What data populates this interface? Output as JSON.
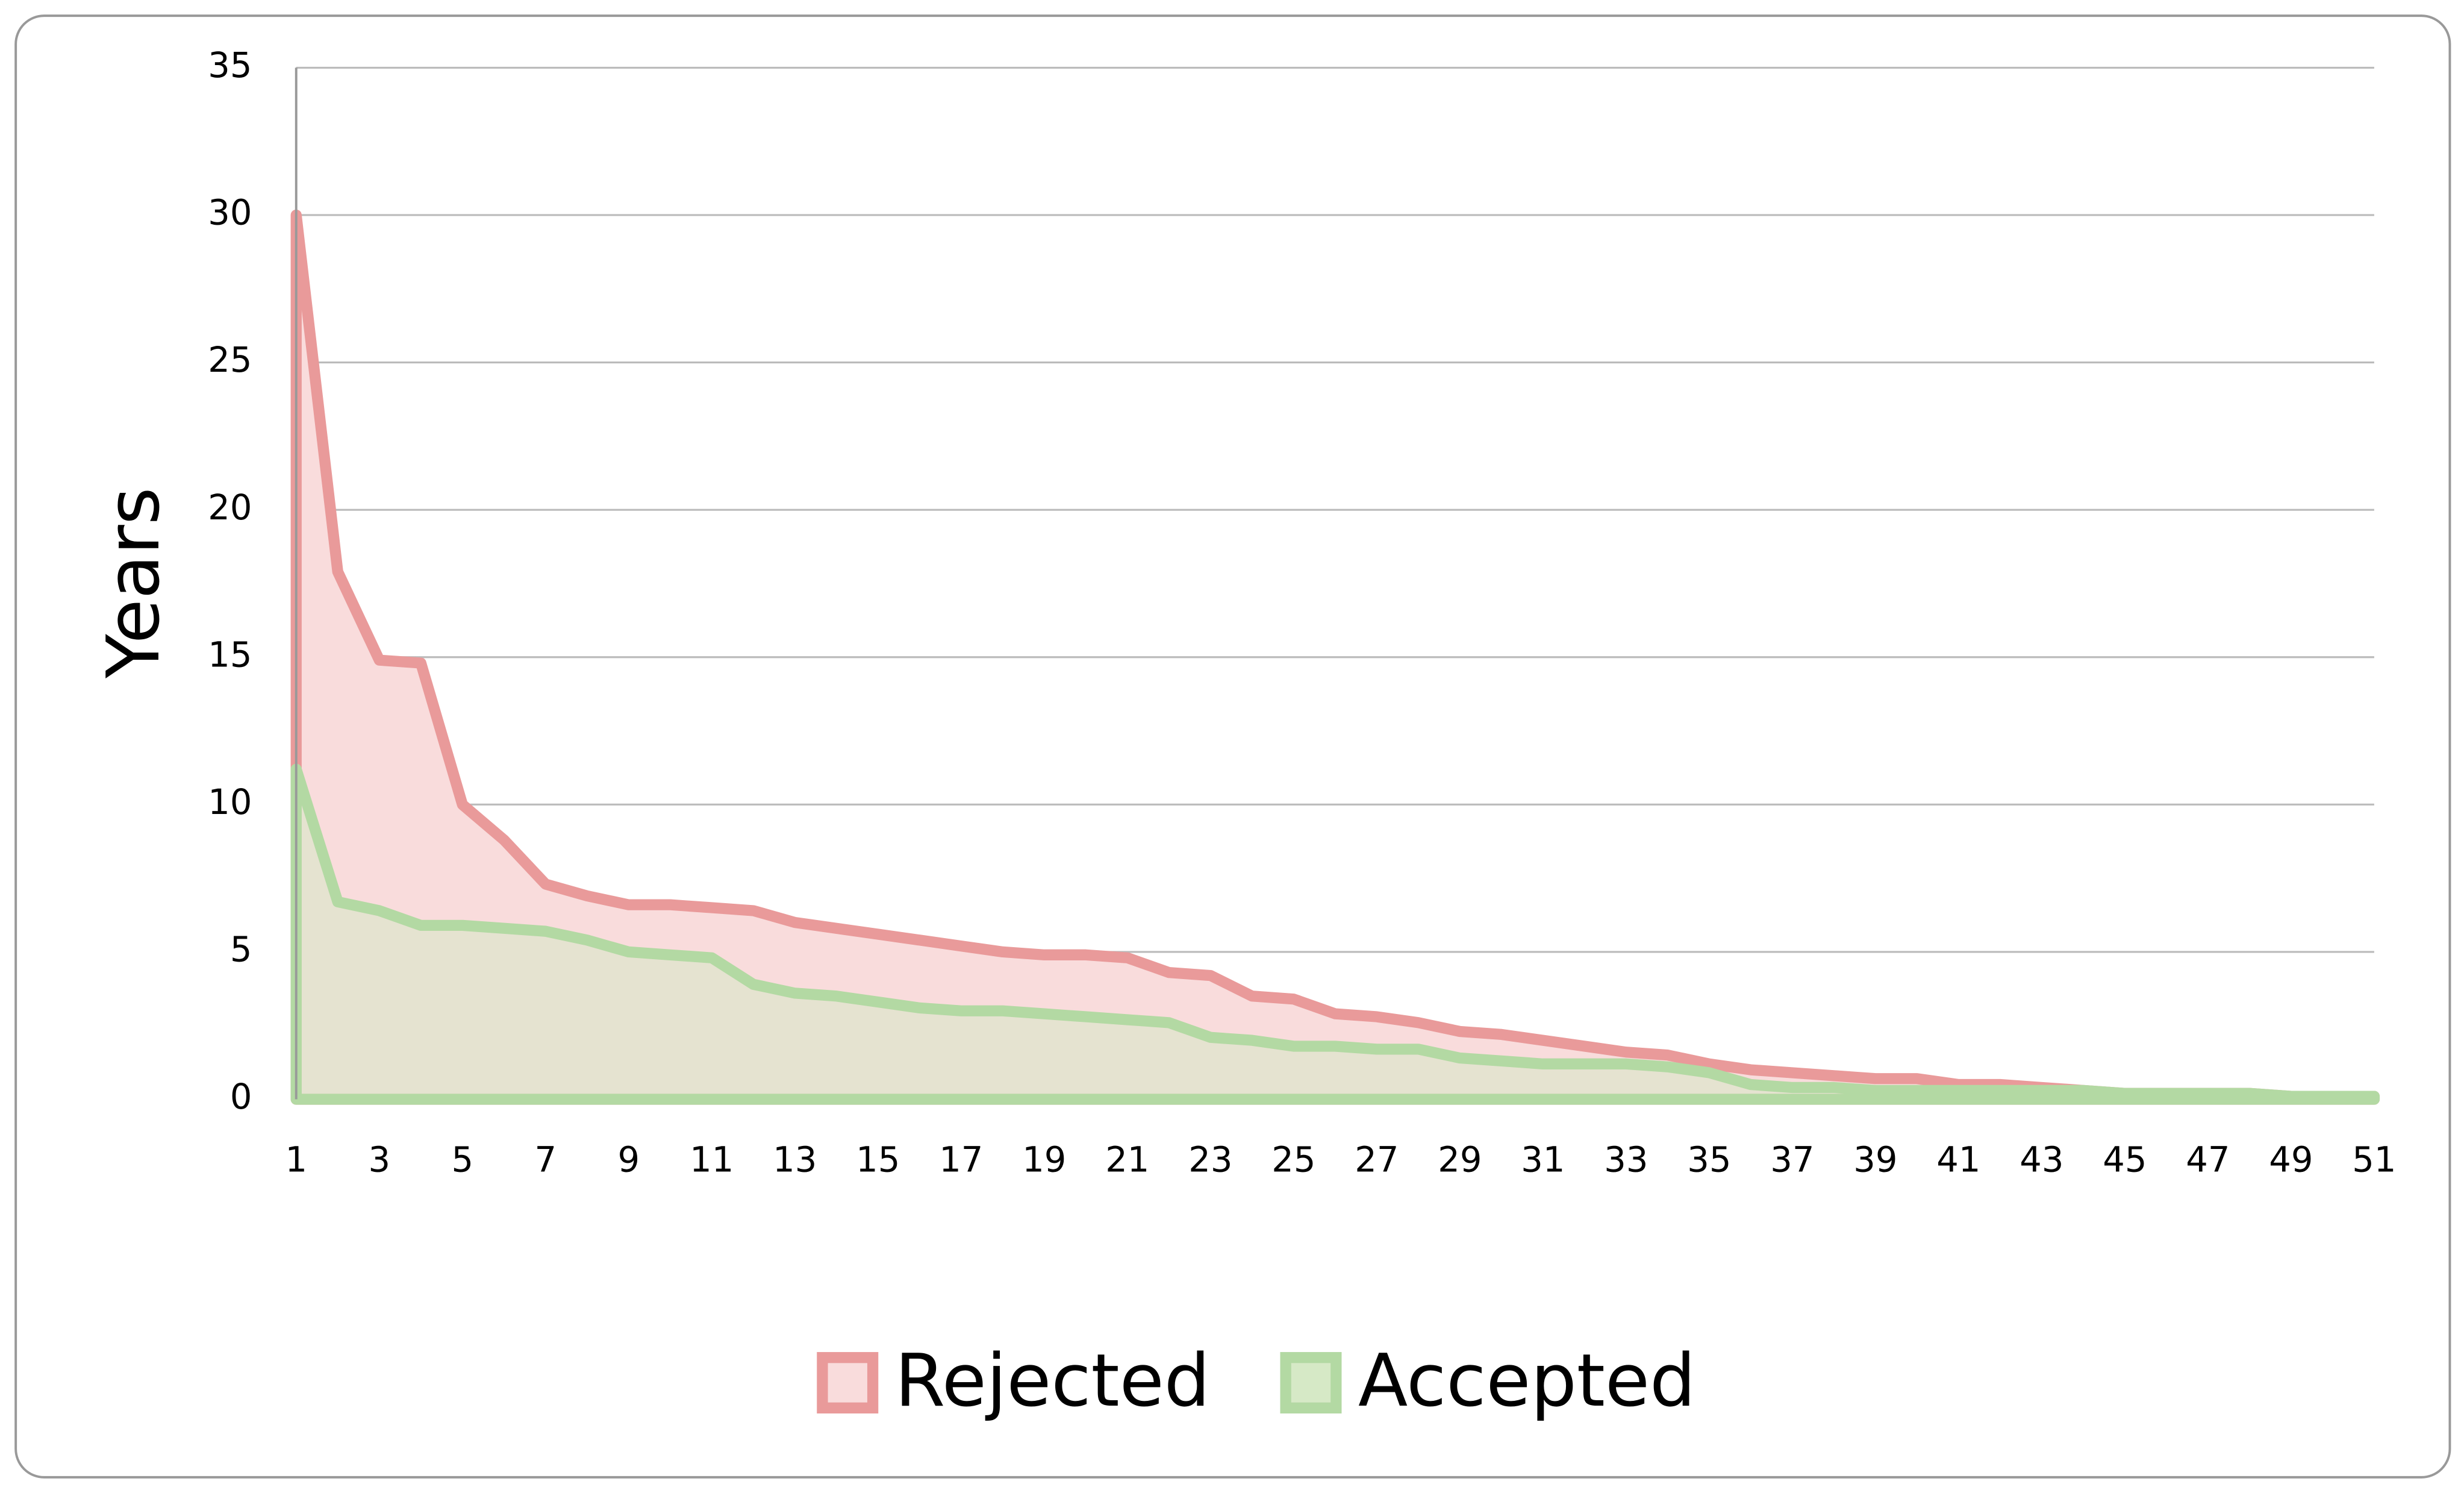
{
  "chart_data": {
    "type": "area",
    "ylabel": "Years",
    "categories": [
      1,
      null,
      3,
      null,
      5,
      null,
      7,
      null,
      9,
      null,
      11,
      null,
      13,
      null,
      15,
      null,
      17,
      null,
      19,
      null,
      21,
      null,
      23,
      null,
      25,
      null,
      27,
      null,
      29,
      null,
      31,
      null,
      33,
      null,
      35,
      null,
      37,
      null,
      39,
      null,
      41,
      null,
      43,
      null,
      45,
      null,
      47,
      null,
      49,
      null,
      51
    ],
    "series": [
      {
        "name": "Rejected",
        "color": "#e99a9a",
        "fill": "#f9dcdc",
        "values": [
          30,
          17.9,
          14.9,
          14.8,
          10,
          8.8,
          7.3,
          6.9,
          6.6,
          6.6,
          6.5,
          6.4,
          6.0,
          5.8,
          5.6,
          5.4,
          5.2,
          5.0,
          4.9,
          4.9,
          4.8,
          4.3,
          4.2,
          3.5,
          3.4,
          2.9,
          2.8,
          2.6,
          2.3,
          2.2,
          2.0,
          1.8,
          1.6,
          1.5,
          1.2,
          1.0,
          0.9,
          0.8,
          0.7,
          0.7,
          0.5,
          0.5,
          0.4,
          0.3,
          0.2,
          0.2,
          0.2,
          0.2,
          0.1,
          0.1,
          0.1
        ]
      },
      {
        "name": "Accepted",
        "color": "#b3d9a3",
        "fill": "#d6e9c6",
        "values": [
          11.2,
          6.7,
          6.4,
          5.9,
          5.9,
          5.8,
          5.7,
          5.4,
          5.0,
          4.9,
          4.8,
          3.9,
          3.6,
          3.5,
          3.3,
          3.1,
          3.0,
          3.0,
          2.9,
          2.8,
          2.7,
          2.6,
          2.1,
          2.0,
          1.8,
          1.8,
          1.7,
          1.7,
          1.4,
          1.3,
          1.2,
          1.2,
          1.2,
          1.1,
          0.9,
          0.5,
          0.4,
          0.4,
          0.3,
          0.3,
          0.3,
          0.3,
          0.3,
          0.3,
          0.2,
          0.2,
          0.2,
          0.2,
          0.1,
          0.1,
          0.1
        ]
      }
    ],
    "ylim": [
      0,
      35
    ],
    "yticks": [
      0,
      5,
      10,
      15,
      20,
      25,
      30,
      35
    ],
    "grid": true,
    "legend": "bottom"
  }
}
